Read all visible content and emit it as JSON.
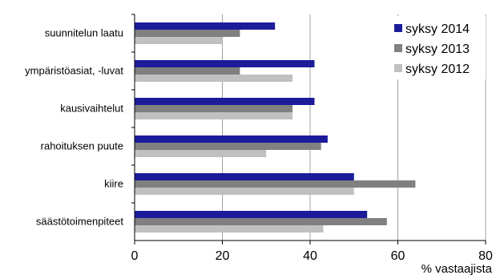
{
  "chart_data": {
    "type": "bar",
    "orientation": "horizontal",
    "categories": [
      "suunnitelun laatu",
      "ympäristöasiat, -luvat",
      "kausivaihtelut",
      "rahoituksen puute",
      "kiire",
      "säästötoimenpiteet"
    ],
    "series": [
      {
        "name": "syksy 2014",
        "color": "#1c1c9b",
        "values": [
          32,
          41,
          41,
          44,
          50,
          53
        ]
      },
      {
        "name": "syksy 2013",
        "color": "#808080",
        "values": [
          24,
          24,
          36,
          42.5,
          64,
          57.5
        ]
      },
      {
        "name": "syksy 2012",
        "color": "#c0c0c0",
        "values": [
          20,
          36,
          36,
          30,
          50,
          43
        ]
      }
    ],
    "x_ticks": [
      "0",
      "20",
      "40",
      "60",
      "80"
    ],
    "xlim": [
      0,
      80
    ],
    "xlabel": "% vastaajista",
    "ylabel": "",
    "title": "",
    "grid": "vertical",
    "legend_position": "top-right"
  }
}
